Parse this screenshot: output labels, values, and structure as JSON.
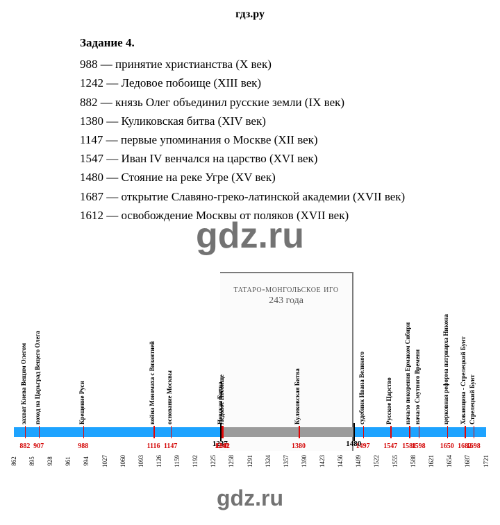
{
  "brand": "гдз.ру",
  "watermark": "gdz.ru",
  "task": {
    "title": "Задание 4."
  },
  "entries": [
    "988 — принятие христианства (X век)",
    "1242 — Ледовое побоище (XIII век)",
    "882 — князь Олег объединил русские земли (IX век)",
    "1380 — Куликовская битва (XIV век)",
    "1147 — первые упоминания о Москве (XII век)",
    "1547 — Иван IV венчался на царство (XVI век)",
    "1480 — Стояние на реке Угре (XV век)",
    "1687 — открытие Славяно-греко-латинской академии (XVII век)",
    "1612 — освобождение Москвы от поляков (XVII век)"
  ],
  "timeline": {
    "range": {
      "min": 862,
      "max": 1721
    },
    "colors": {
      "bar_blue": "#1ea3ff",
      "bar_gray": "#9b9b9b",
      "red": "#d40808",
      "dark": "#1b1b1b",
      "mongol_border": "#7b7b7b"
    },
    "mongol": {
      "start": 1237,
      "end": 1480,
      "title_line1": "татаро-монгольское иго",
      "title_line2": "243 года"
    },
    "events": [
      {
        "year": 882,
        "label": "захват Киева Вещим Олегом"
      },
      {
        "year": 907,
        "label": "поход на Царьград Вещего Олега"
      },
      {
        "year": 988,
        "label": "Крещение Руси"
      },
      {
        "year": 1116,
        "label": "война Мономаха с Византией"
      },
      {
        "year": 1147,
        "label": "основание Москвы"
      },
      {
        "year": 1240,
        "label": "Невская Битва"
      },
      {
        "year": 1242,
        "label": "Ледовое Побоище"
      },
      {
        "year": 1380,
        "label": "Куликовская Битва"
      },
      {
        "year": 1497,
        "label": "судебник Ивана Великого"
      },
      {
        "year": 1547,
        "label": "Русское Царство"
      },
      {
        "year": 1581,
        "label": "начало покорения Ермаком Сибири"
      },
      {
        "year": 1598,
        "label": "начало Смутного Времени"
      },
      {
        "year": 1650,
        "label": "церковная реформа патриарха Никона"
      },
      {
        "year": 1682,
        "label": "Хованщина - Стрелецкий Бунт"
      },
      {
        "year": 1698,
        "label": "Стрелецкий Бунт"
      }
    ],
    "key_marks": [
      1237,
      1480
    ],
    "red_year_labels": [
      882,
      907,
      988,
      1116,
      1147,
      1240,
      1242,
      1380,
      1497,
      1547,
      1581,
      1598,
      1650,
      1682,
      1698
    ],
    "axis_years": [
      862,
      895,
      928,
      961,
      994,
      1027,
      1060,
      1093,
      1126,
      1159,
      1192,
      1225,
      1258,
      1291,
      1324,
      1357,
      1390,
      1423,
      1456,
      1489,
      1522,
      1555,
      1588,
      1621,
      1654,
      1687,
      1721
    ]
  }
}
